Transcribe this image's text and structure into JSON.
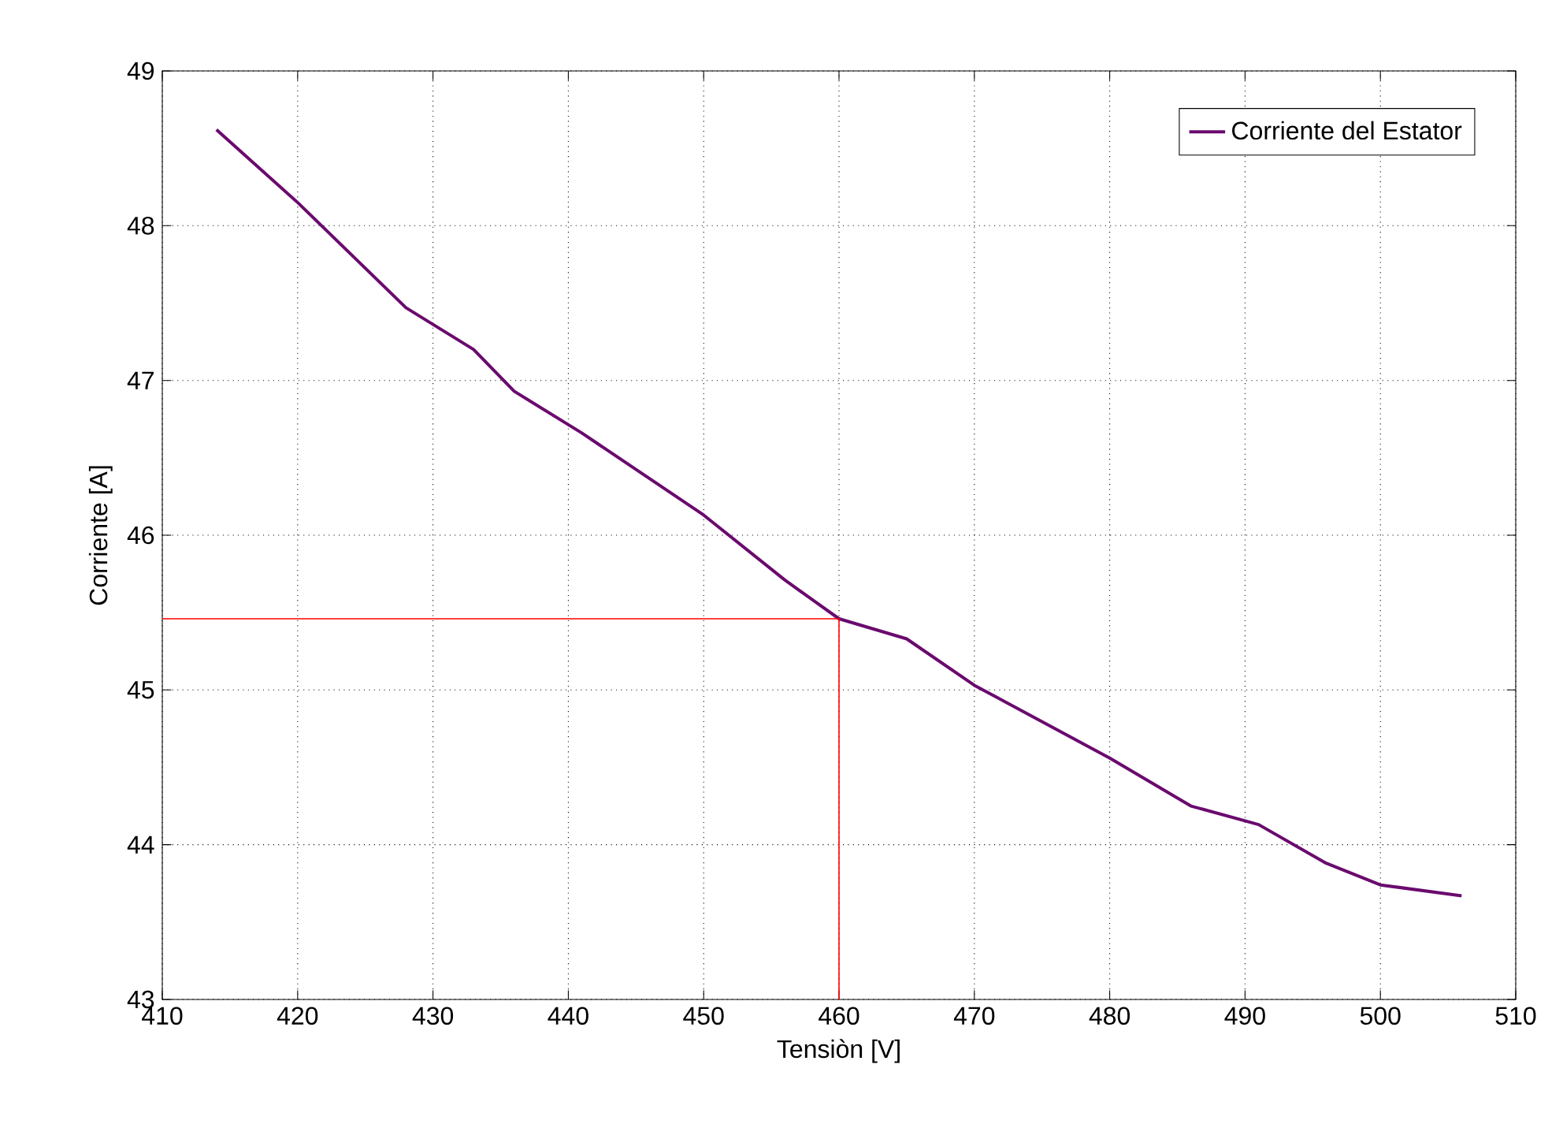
{
  "chart_data": {
    "type": "line",
    "xlabel": "Tensiòn [V]",
    "ylabel": "Corriente [A]",
    "xlim": [
      410,
      510
    ],
    "ylim": [
      43,
      49
    ],
    "xticks": [
      410,
      420,
      430,
      440,
      450,
      460,
      470,
      480,
      490,
      500,
      510
    ],
    "yticks": [
      43,
      44,
      45,
      46,
      47,
      48,
      49
    ],
    "grid": true,
    "legend": "top right",
    "marker": "none",
    "line_style": "solid",
    "series": [
      {
        "name": "Corriente del Estator",
        "color": "#6a0a6e",
        "x": [
          414,
          420,
          428,
          433,
          436,
          441,
          450,
          456,
          460,
          465,
          470,
          480,
          486,
          491,
          496,
          500,
          506
        ],
        "values": [
          48.62,
          48.15,
          47.47,
          47.2,
          46.93,
          46.66,
          46.13,
          45.71,
          45.46,
          45.33,
          45.03,
          44.56,
          44.25,
          44.13,
          43.88,
          43.74,
          43.67
        ]
      },
      {
        "type": "line",
        "color": "#ff0000",
        "x": [
          410,
          460,
          460
        ],
        "values": [
          45.46,
          45.46,
          43
        ]
      }
    ]
  }
}
